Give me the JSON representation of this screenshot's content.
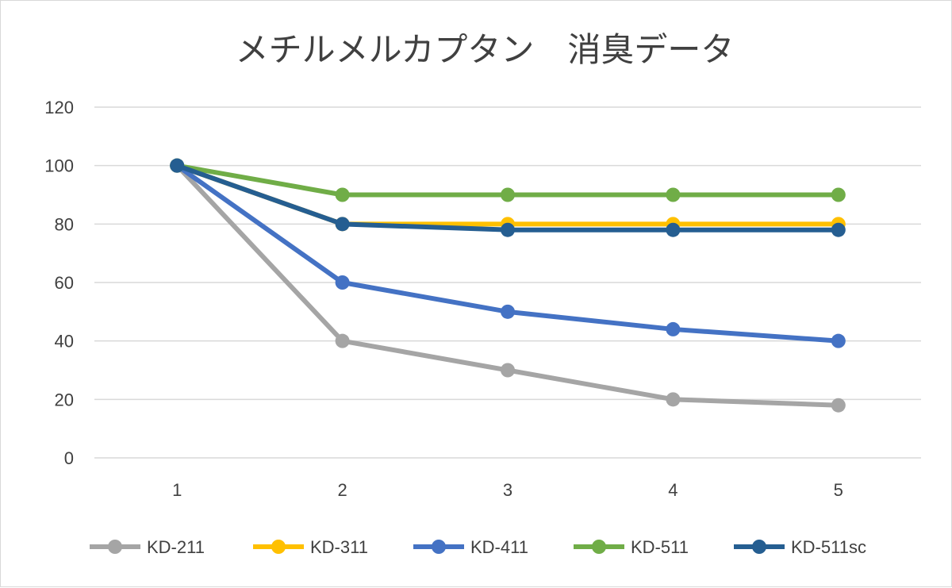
{
  "chart_data": {
    "type": "line",
    "title": "メチルメルカプタン　消臭データ",
    "xlabel": "",
    "ylabel": "",
    "categories": [
      "1",
      "2",
      "3",
      "4",
      "5"
    ],
    "ylim": [
      0,
      120
    ],
    "yticks": [
      0,
      20,
      40,
      60,
      80,
      100,
      120
    ],
    "grid": true,
    "legend_position": "bottom",
    "series": [
      {
        "name": "KD-211",
        "color": "#a5a5a5",
        "values": [
          100,
          40,
          30,
          20,
          18
        ]
      },
      {
        "name": "KD-311",
        "color": "#ffc000",
        "values": [
          100,
          80,
          80,
          80,
          80
        ]
      },
      {
        "name": "KD-411",
        "color": "#4472c4",
        "values": [
          100,
          60,
          50,
          44,
          40
        ]
      },
      {
        "name": "KD-511",
        "color": "#70ad47",
        "values": [
          100,
          90,
          90,
          90,
          90
        ]
      },
      {
        "name": "KD-511sc",
        "color": "#255e91",
        "values": [
          100,
          80,
          78,
          78,
          78
        ]
      }
    ]
  }
}
